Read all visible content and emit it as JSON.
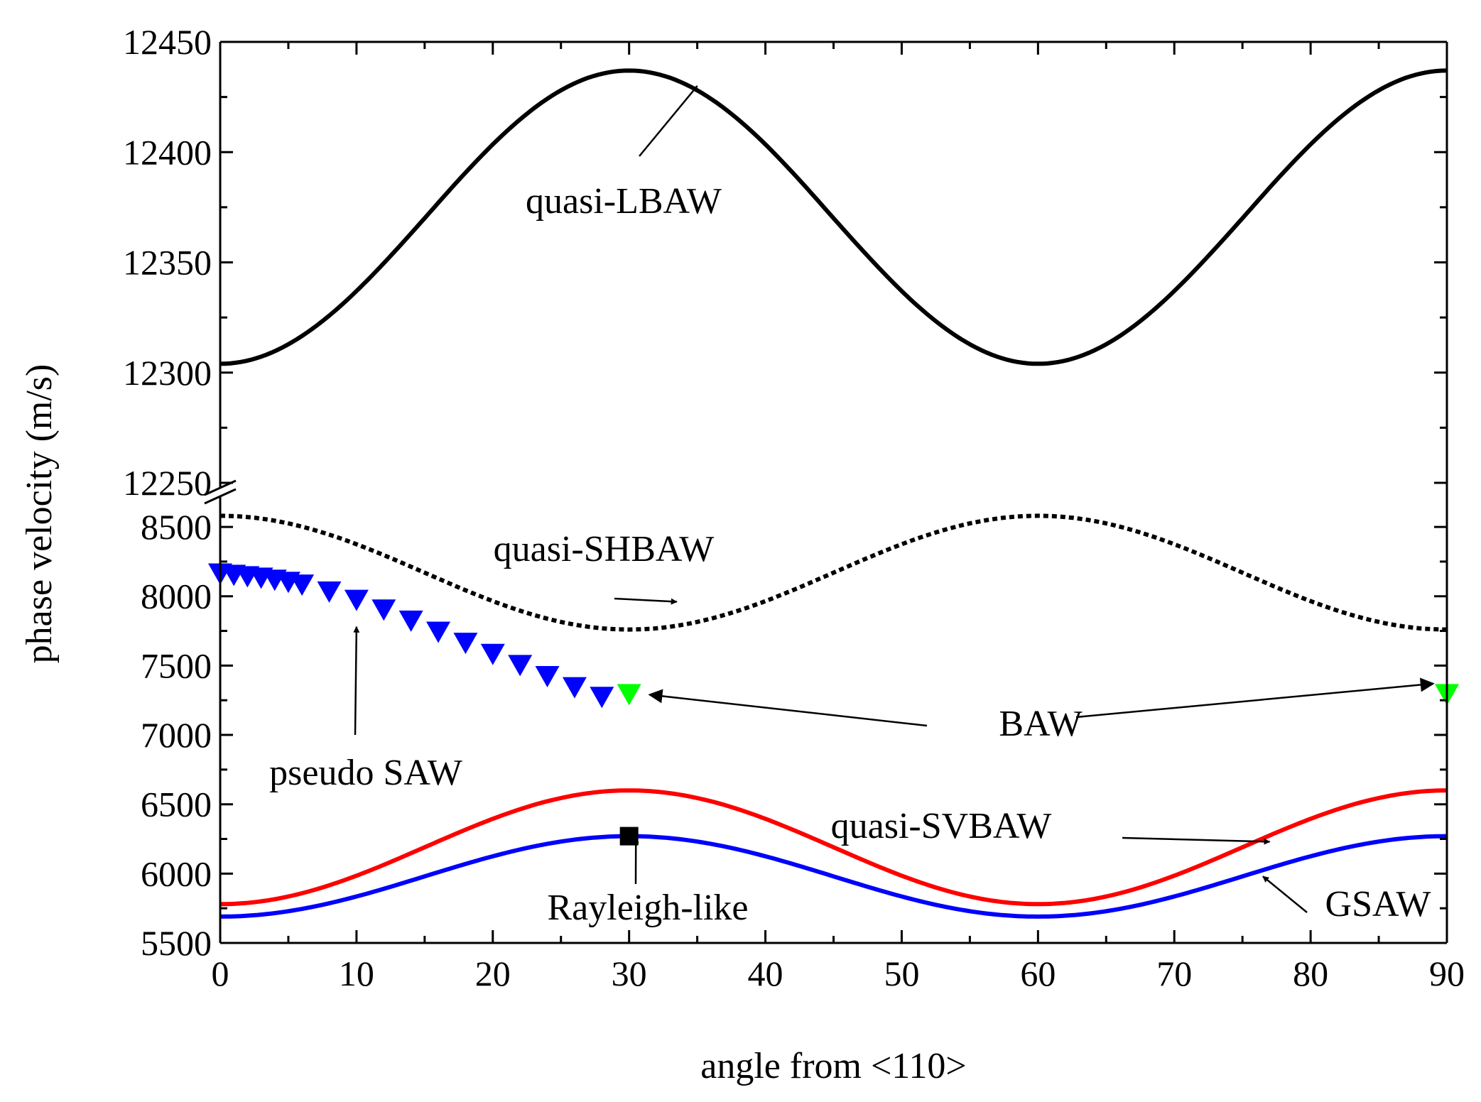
{
  "chart_data": {
    "type": "line",
    "xlabel": "angle from <110>",
    "ylabel": "phase velocity (m/s)",
    "xlim": [
      0,
      90
    ],
    "x_ticks": [
      "0",
      "10",
      "20",
      "30",
      "40",
      "50",
      "60",
      "70",
      "80",
      "90"
    ],
    "y_axis_break": true,
    "y_upper_segment": {
      "range": [
        12250,
        12450
      ],
      "ticks": [
        "12250",
        "12300",
        "12350",
        "12400",
        "12450"
      ]
    },
    "y_lower_segment": {
      "range": [
        5500,
        8700
      ],
      "ticks": [
        "5500",
        "6000",
        "6500",
        "7000",
        "7500",
        "8000",
        "8500"
      ]
    },
    "series": [
      {
        "name": "quasi-LBAW",
        "segment": "upper",
        "style": "solid",
        "color": "#000000",
        "x": [
          0,
          15,
          30,
          45,
          60,
          75,
          90
        ],
        "y": [
          12304,
          12370,
          12437,
          12370,
          12304,
          12370,
          12437
        ]
      },
      {
        "name": "quasi-SHBAW",
        "segment": "lower",
        "style": "dotted",
        "color": "#000000",
        "x": [
          0,
          15,
          30,
          45,
          60,
          75,
          90
        ],
        "y": [
          8580,
          8170,
          7760,
          8170,
          8580,
          8170,
          7760
        ]
      },
      {
        "name": "quasi-SVBAW",
        "segment": "lower",
        "style": "solid",
        "color": "#ff0000",
        "x": [
          0,
          15,
          30,
          45,
          60,
          75,
          90
        ],
        "y": [
          5780,
          6190,
          6600,
          6190,
          5780,
          6190,
          6600
        ]
      },
      {
        "name": "GSAW",
        "segment": "lower",
        "style": "solid",
        "color": "#0000ff",
        "x": [
          0,
          15,
          30,
          45,
          60,
          75,
          90
        ],
        "y": [
          5690,
          5980,
          6270,
          5980,
          5690,
          5980,
          6270
        ]
      },
      {
        "name": "pseudo SAW",
        "segment": "lower",
        "style": "marker",
        "marker": "triangle-down",
        "color": "#0000ff",
        "x": [
          0,
          1,
          2,
          3,
          4,
          5,
          6,
          8,
          10,
          12,
          14,
          16,
          18,
          20,
          22,
          24,
          26,
          28
        ],
        "y": [
          8160,
          8150,
          8140,
          8130,
          8115,
          8100,
          8080,
          8030,
          7970,
          7900,
          7820,
          7740,
          7660,
          7580,
          7500,
          7420,
          7340,
          7270
        ]
      },
      {
        "name": "BAW",
        "segment": "lower",
        "style": "marker",
        "marker": "triangle-down",
        "color": "#00ff00",
        "x": [
          30,
          90
        ],
        "y": [
          7290,
          7290
        ]
      },
      {
        "name": "Rayleigh-like",
        "segment": "lower",
        "style": "marker",
        "marker": "square",
        "color": "#000000",
        "x": [
          30
        ],
        "y": [
          6270
        ]
      }
    ],
    "annotations": [
      {
        "text": "quasi-LBAW",
        "points_to": [
          35,
          12430
        ]
      },
      {
        "text": "quasi-SHBAW",
        "points_to": [
          33.5,
          7960
        ]
      },
      {
        "text": "pseudo SAW",
        "points_to": [
          10,
          7780
        ]
      },
      {
        "text": "BAW",
        "points_to_multiple": [
          [
            31.5,
            7290
          ],
          [
            89,
            7370
          ]
        ]
      },
      {
        "text": "quasi-SVBAW",
        "points_to": [
          77,
          6230
        ]
      },
      {
        "text": "Rayleigh-like",
        "points_to": [
          30.5,
          6260
        ]
      },
      {
        "text": "GSAW",
        "points_to": [
          76.5,
          5980
        ]
      }
    ]
  }
}
